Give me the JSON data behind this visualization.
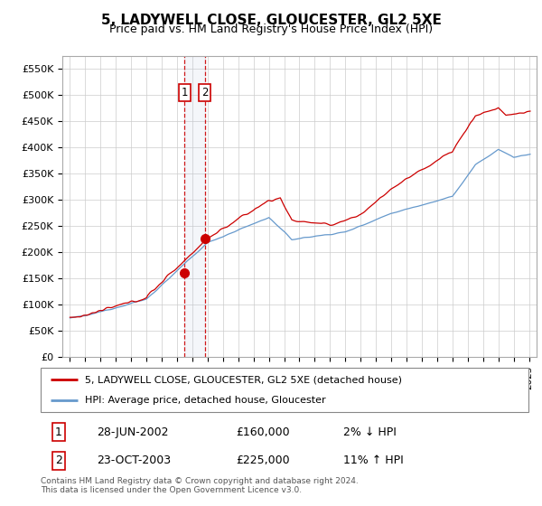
{
  "title": "5, LADYWELL CLOSE, GLOUCESTER, GL2 5XE",
  "subtitle": "Price paid vs. HM Land Registry's House Price Index (HPI)",
  "sale1_date": 2002.49,
  "sale1_price": 160000,
  "sale1_label": "28-JUN-2002",
  "sale1_pct": "2% ↓ HPI",
  "sale2_date": 2003.81,
  "sale2_price": 225000,
  "sale2_label": "23-OCT-2003",
  "sale2_pct": "11% ↑ HPI",
  "legend_line1": "5, LADYWELL CLOSE, GLOUCESTER, GL2 5XE (detached house)",
  "legend_line2": "HPI: Average price, detached house, Gloucester",
  "footer": "Contains HM Land Registry data © Crown copyright and database right 2024.\nThis data is licensed under the Open Government Licence v3.0.",
  "red_color": "#cc0000",
  "blue_color": "#6699cc",
  "ylim_min": 0,
  "ylim_max": 575000,
  "xlim_min": 1994.5,
  "xlim_max": 2025.5,
  "yticks": [
    0,
    50000,
    100000,
    150000,
    200000,
    250000,
    300000,
    350000,
    400000,
    450000,
    500000,
    550000
  ],
  "ytick_labels": [
    "£0",
    "£50K",
    "£100K",
    "£150K",
    "£200K",
    "£250K",
    "£300K",
    "£350K",
    "£400K",
    "£450K",
    "£500K",
    "£550K"
  ]
}
